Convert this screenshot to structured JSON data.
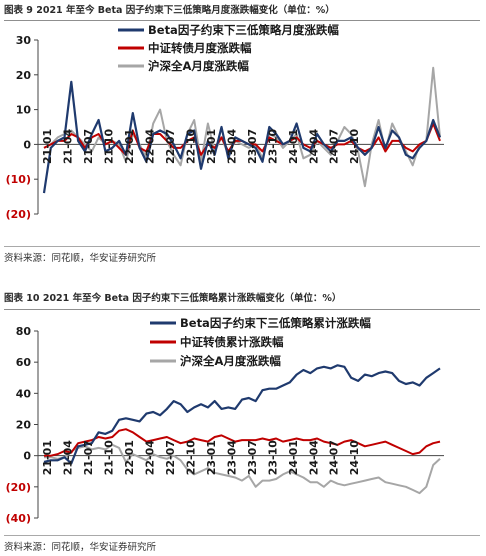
{
  "figures": [
    {
      "title": "图表 9 2021 年至今 Beta 因子约束下三低策略月度涨跌幅变化（单位：%）",
      "source": "资料来源：同花顺，华安证券研究所"
    },
    {
      "title": "图表 10 2021 年至今 Beta 因子约束下三低策略累计涨跌幅变化（单位：%）",
      "source": "资料来源：同花顺，华安证券研究所"
    }
  ],
  "chart_data": [
    {
      "type": "line",
      "title": "",
      "xlabel": "",
      "ylabel": "",
      "ylim": [
        -20,
        30
      ],
      "ytick_labels": [
        "30",
        "20",
        "10",
        "0",
        "(10)",
        "(20)"
      ],
      "negative_tick_color": "#c00000",
      "x_tick_labels": [
        "21-01",
        "21-04",
        "21-07",
        "21-10",
        "22-01",
        "22-04",
        "22-07",
        "22-10",
        "23-01",
        "23-04",
        "23-07",
        "23-10",
        "24-01",
        "24-04",
        "24-07",
        "24-10"
      ],
      "legend_position": "top-right",
      "grid": false,
      "series": [
        {
          "name": "Beta因子约束下三低策略月度涨跌幅",
          "color": "#1f3a6e",
          "values": [
            -14,
            -1,
            1,
            2,
            18,
            1,
            -2,
            3,
            7,
            -2,
            -1,
            1,
            -3,
            9,
            -1,
            -5,
            3,
            4,
            3,
            0,
            -4,
            3,
            4,
            -7,
            1,
            -3,
            5,
            -4,
            2,
            1,
            0,
            -1,
            -5,
            5,
            3,
            0,
            1,
            6,
            -1,
            -2,
            3,
            0,
            -2,
            1,
            1,
            2,
            -1,
            -3,
            -1,
            5,
            -1,
            4,
            2,
            -3,
            -4,
            -1,
            1,
            7,
            2
          ]
        },
        {
          "name": "中证转债月度涨跌幅",
          "color": "#c00000",
          "values": [
            -1,
            0,
            1,
            1,
            3,
            2,
            -1,
            2,
            3,
            0,
            1,
            -1,
            -3,
            4,
            -1,
            -2,
            3,
            3,
            1,
            -1,
            -1,
            1,
            2,
            -3,
            0,
            -1,
            2,
            -2,
            1,
            1,
            0,
            0,
            -2,
            2,
            1,
            0,
            1,
            2,
            0,
            -1,
            1,
            0,
            -1,
            0,
            0,
            1,
            -1,
            -2,
            -1,
            2,
            -2,
            1,
            1,
            -1,
            -2,
            0,
            1,
            6,
            1
          ]
        },
        {
          "name": "沪深全A月度涨跌幅",
          "color": "#a6a6a6",
          "values": [
            -1,
            0,
            2,
            3,
            4,
            2,
            0,
            -2,
            2,
            0,
            1,
            0,
            -5,
            3,
            0,
            -4,
            6,
            10,
            1,
            -3,
            -6,
            3,
            7,
            -5,
            6,
            -2,
            2,
            -3,
            1,
            0,
            -1,
            0,
            -4,
            3,
            2,
            -1,
            1,
            3,
            -4,
            -3,
            1,
            -1,
            -3,
            1,
            5,
            3,
            -2,
            -12,
            0,
            7,
            -2,
            6,
            2,
            -2,
            -6,
            0,
            1,
            22,
            2
          ]
        }
      ]
    },
    {
      "type": "line",
      "title": "",
      "xlabel": "",
      "ylabel": "",
      "ylim": [
        -40,
        80
      ],
      "ytick_labels": [
        "80",
        "60",
        "40",
        "20",
        "0",
        "(20)",
        "(40)"
      ],
      "negative_tick_color": "#c00000",
      "x_tick_labels": [
        "21-01",
        "21-04",
        "21-07",
        "21-10",
        "22-01",
        "22-04",
        "22-07",
        "22-10",
        "23-01",
        "23-04",
        "23-07",
        "23-10",
        "24-01",
        "24-04",
        "24-07",
        "24-10"
      ],
      "legend_position": "top-right",
      "grid": false,
      "series": [
        {
          "name": "Beta因子约束下三低策略累计涨跌幅",
          "color": "#1f3a6e",
          "values": [
            -4,
            -3,
            -3,
            -1,
            -5,
            6,
            7,
            8,
            15,
            14,
            16,
            23,
            24,
            23,
            22,
            27,
            28,
            26,
            30,
            35,
            33,
            28,
            31,
            33,
            31,
            35,
            30,
            31,
            30,
            36,
            37,
            35,
            42,
            43,
            43,
            45,
            47,
            52,
            55,
            53,
            56,
            57,
            56,
            58,
            57,
            50,
            48,
            52,
            51,
            53,
            54,
            53,
            48,
            46,
            47,
            45,
            50,
            53,
            56
          ]
        },
        {
          "name": "中证转债累计涨跌幅",
          "color": "#c00000",
          "values": [
            0,
            0,
            1,
            3,
            2,
            8,
            9,
            10,
            12,
            11,
            12,
            16,
            17,
            15,
            12,
            9,
            10,
            11,
            12,
            10,
            8,
            9,
            11,
            10,
            9,
            12,
            13,
            11,
            9,
            10,
            10,
            10,
            11,
            10,
            11,
            9,
            10,
            11,
            10,
            10,
            11,
            9,
            8,
            7,
            9,
            10,
            8,
            6,
            7,
            8,
            9,
            7,
            5,
            3,
            1,
            2,
            6,
            8,
            9
          ]
        },
        {
          "name": "沪深全A月度涨跌幅",
          "color": "#a6a6a6",
          "values": [
            -1,
            -1,
            -2,
            -1,
            3,
            5,
            6,
            4,
            5,
            4,
            7,
            5,
            -4,
            1,
            -1,
            -3,
            1,
            -1,
            -2,
            0,
            -3,
            -9,
            -12,
            -10,
            -8,
            -11,
            -12,
            -13,
            -14,
            -16,
            -13,
            -20,
            -16,
            -16,
            -15,
            -12,
            -10,
            -12,
            -14,
            -17,
            -17,
            -20,
            -16,
            -18,
            -19,
            -18,
            -17,
            -16,
            -15,
            -14,
            -17,
            -18,
            -19,
            -20,
            -22,
            -24,
            -20,
            -6,
            -2
          ]
        }
      ]
    }
  ]
}
